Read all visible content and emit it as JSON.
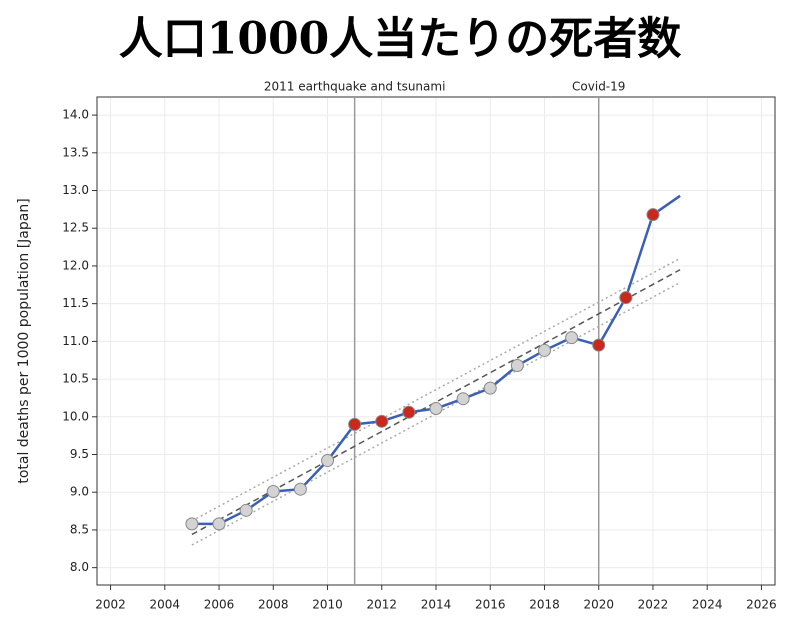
{
  "chart_data": {
    "type": "line",
    "title": "人口1000人当たりの死者数",
    "y_label": "total deaths per 1000 population [Japan]",
    "annotations": [
      {
        "x": 2011,
        "label": "2011 earthquake and tsunami"
      },
      {
        "x": 2020,
        "label": "Covid-19"
      }
    ],
    "x": [
      2005,
      2006,
      2007,
      2008,
      2009,
      2010,
      2011,
      2012,
      2013,
      2014,
      2015,
      2016,
      2017,
      2018,
      2019,
      2020,
      2021,
      2022,
      2023
    ],
    "series": [
      {
        "color": "#3a5fb4",
        "values": [
          8.58,
          8.58,
          8.76,
          9.01,
          9.04,
          9.42,
          9.9,
          9.94,
          10.06,
          10.11,
          10.24,
          10.38,
          10.68,
          10.88,
          11.05,
          10.95,
          11.58,
          12.68,
          12.93
        ],
        "marker_colors": [
          "#d3d3d3",
          "#d3d3d3",
          "#d3d3d3",
          "#d3d3d3",
          "#d3d3d3",
          "#d3d3d3",
          "#c8281e",
          "#c8281e",
          "#c8281e",
          "#d3d3d3",
          "#d3d3d3",
          "#d3d3d3",
          "#d3d3d3",
          "#d3d3d3",
          "#d3d3d3",
          "#c8281e",
          "#c8281e",
          "#c8281e",
          null
        ]
      }
    ],
    "trend": {
      "x": [
        2005,
        2023
      ],
      "values": [
        8.44,
        11.95
      ],
      "upper": [
        8.62,
        12.1
      ],
      "lower": [
        8.3,
        11.78
      ],
      "color": "#555555",
      "band_color": "#aaaaaa"
    },
    "xlim": [
      2001.5,
      2026.5
    ],
    "ylim": [
      7.77,
      14.24
    ],
    "xticks": [
      2002,
      2004,
      2006,
      2008,
      2010,
      2012,
      2014,
      2016,
      2018,
      2020,
      2022,
      2024,
      2026
    ],
    "yticks": [
      {
        "value": 8,
        "label": "8.0"
      },
      8.5,
      {
        "value": 9,
        "label": "9.0"
      },
      9.5,
      {
        "value": 10,
        "label": "10.0"
      },
      10.5,
      {
        "value": 11,
        "label": "11.0"
      },
      11.5,
      {
        "value": 12,
        "label": "12.0"
      },
      12.5,
      {
        "value": 13,
        "label": "13.0"
      },
      13.5,
      {
        "value": 14,
        "label": "14.0"
      }
    ],
    "grid": true
  }
}
